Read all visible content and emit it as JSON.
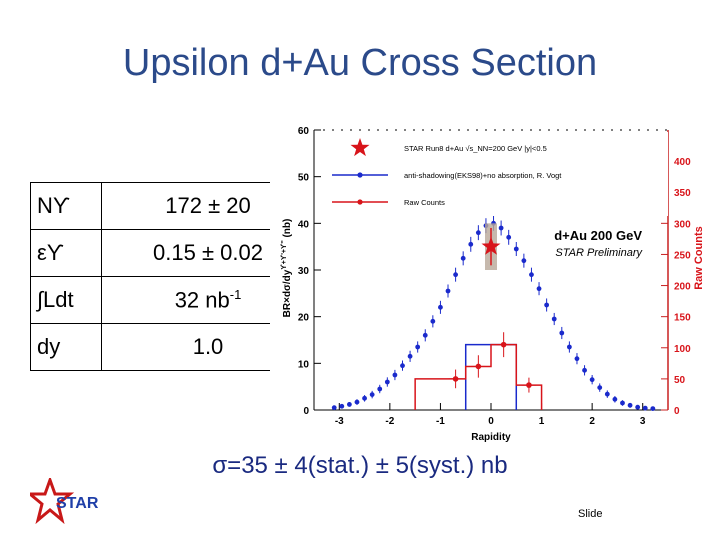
{
  "slide": {
    "title": "Upsilon d+Au Cross Section",
    "footer_label": "Slide",
    "cross_section": "σ=35 ± 4(stat.) ± 5(syst.) nb",
    "logo_text": "STAR"
  },
  "params": [
    {
      "label": "Nϒ",
      "value": "172 ± 20"
    },
    {
      "label": "εϒ",
      "value": "0.15 ± 0.02"
    },
    {
      "label": "∫Ldt",
      "value": "32 nb",
      "value_sup": "-1"
    },
    {
      "label": "dy",
      "value": "1.0"
    }
  ],
  "colors": {
    "title": "#2b4a8a",
    "star_red": "#d8141a",
    "model_blue": "#1a2acc",
    "raw_red": "#d8141a",
    "cross_text": "#1a2a80"
  },
  "chart_data": {
    "type": "scatter",
    "xlabel": "Rapidity",
    "ylabel": "BR×dσ/dy",
    "ylabel_sup": "ϒ+ϒ'+ϒ''",
    "ylabel_unit": "(nb)",
    "y2label": "Raw Counts",
    "xlim": [
      -3.5,
      3.5
    ],
    "ylim": [
      0,
      60
    ],
    "y2lim": [
      0,
      450
    ],
    "xticks": [
      "-3",
      "-2",
      "-1",
      "0",
      "1",
      "2",
      "3"
    ],
    "xtick_values": [
      -3,
      -2,
      -1,
      0,
      1,
      2,
      3
    ],
    "yticks": [
      "0",
      "10",
      "20",
      "30",
      "40",
      "50",
      "60"
    ],
    "yticks_right": [
      "0",
      "50",
      "100",
      "150",
      "200",
      "250",
      "300",
      "350",
      "400"
    ],
    "annotation_main": "d+Au 200 GeV",
    "annotation_sub": "STAR Preliminary",
    "legend_entries": [
      "STAR Run8 d+Au √s_NN=200 GeV  |y|<0.5",
      "anti-shadowing(EKS98)+no absorption, R. Vogt",
      "Raw Counts"
    ],
    "series": [
      {
        "name": "STAR Run8 d+Au √s_NN=200 GeV  |y|<0.5",
        "x": [
          0.0
        ],
        "y": [
          35
        ],
        "stat_err": [
          4
        ],
        "syst_err": [
          5
        ]
      },
      {
        "name": "anti-shadowing(EKS98)+no absorption, R. Vogt",
        "x": [
          -3.1,
          -2.95,
          -2.8,
          -2.65,
          -2.5,
          -2.35,
          -2.2,
          -2.05,
          -1.9,
          -1.75,
          -1.6,
          -1.45,
          -1.3,
          -1.15,
          -1.0,
          -0.85,
          -0.7,
          -0.55,
          -0.4,
          -0.25,
          -0.1,
          0.05,
          0.2,
          0.35,
          0.5,
          0.65,
          0.8,
          0.95,
          1.1,
          1.25,
          1.4,
          1.55,
          1.7,
          1.85,
          2.0,
          2.15,
          2.3,
          2.45,
          2.6,
          2.75,
          2.9,
          3.05,
          3.2
        ],
        "y": [
          0.5,
          0.8,
          1.2,
          1.7,
          2.5,
          3.3,
          4.5,
          6,
          7.5,
          9.5,
          11.5,
          13.5,
          16,
          19,
          22,
          25.5,
          29,
          32.5,
          35.5,
          38,
          39.5,
          40,
          39,
          37,
          34.5,
          32,
          29,
          26,
          22.5,
          19.5,
          16.5,
          13.5,
          11,
          8.5,
          6.5,
          4.8,
          3.4,
          2.3,
          1.5,
          1.0,
          0.6,
          0.4,
          0.3
        ],
        "err": [
          0.3,
          0.4,
          0.5,
          0.6,
          0.7,
          0.8,
          0.9,
          1.0,
          1.1,
          1.1,
          1.2,
          1.2,
          1.3,
          1.3,
          1.4,
          1.4,
          1.5,
          1.5,
          1.6,
          1.6,
          1.6,
          1.6,
          1.6,
          1.6,
          1.5,
          1.5,
          1.5,
          1.4,
          1.4,
          1.3,
          1.3,
          1.2,
          1.2,
          1.1,
          1.0,
          0.9,
          0.8,
          0.7,
          0.6,
          0.5,
          0.4,
          0.3,
          0.3
        ]
      },
      {
        "name": "Raw Counts",
        "bins": [
          [
            -1.5,
            -0.5
          ],
          [
            -0.5,
            0.0
          ],
          [
            0.0,
            0.5
          ],
          [
            0.5,
            1.0
          ]
        ],
        "x": [
          -0.7,
          -0.25,
          0.25,
          0.75
        ],
        "y": [
          50,
          70,
          105,
          40
        ],
        "err": [
          15,
          18,
          20,
          12
        ]
      }
    ],
    "model_hist": {
      "bins": [
        [
          -0.5,
          0.5
        ]
      ],
      "heights": [
        14
      ]
    },
    "grid": false,
    "legend_position": "top"
  }
}
